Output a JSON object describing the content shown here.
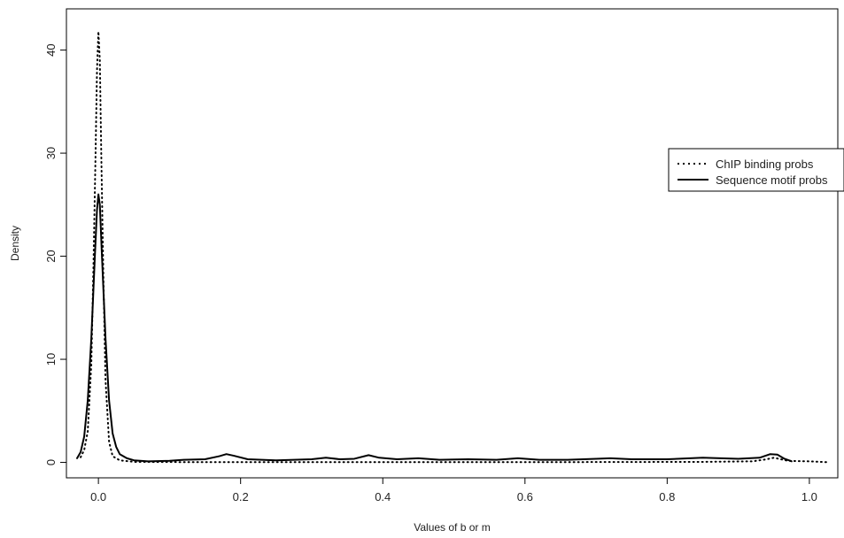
{
  "chart_data": {
    "type": "line",
    "title": "",
    "xlabel": "Values of b or m",
    "ylabel": "Density",
    "xlim": [
      -0.045,
      1.04
    ],
    "ylim": [
      -1.5,
      44
    ],
    "x_ticks": [
      0.0,
      0.2,
      0.4,
      0.6,
      0.8,
      1.0
    ],
    "x_tick_labels": [
      "0.0",
      "0.2",
      "0.4",
      "0.6",
      "0.8",
      "1.0"
    ],
    "y_ticks": [
      0,
      10,
      20,
      30,
      40
    ],
    "y_tick_labels": [
      "0",
      "10",
      "20",
      "30",
      "40"
    ],
    "grid": false,
    "legend_position": "right",
    "series": [
      {
        "name": "ChIP binding probs",
        "style": "dotted",
        "color": "#000000",
        "points": [
          [
            -0.025,
            0.5
          ],
          [
            -0.02,
            1.2
          ],
          [
            -0.015,
            3.0
          ],
          [
            -0.01,
            9.5
          ],
          [
            -0.007,
            19.0
          ],
          [
            -0.004,
            30.0
          ],
          [
            -0.002,
            38.0
          ],
          [
            0.0,
            41.8
          ],
          [
            0.002,
            39.0
          ],
          [
            0.004,
            30.0
          ],
          [
            0.007,
            18.0
          ],
          [
            0.01,
            8.0
          ],
          [
            0.015,
            2.0
          ],
          [
            0.02,
            0.6
          ],
          [
            0.03,
            0.2
          ],
          [
            0.05,
            0.05
          ],
          [
            0.1,
            0.03
          ],
          [
            0.3,
            0.02
          ],
          [
            0.5,
            0.02
          ],
          [
            0.7,
            0.03
          ],
          [
            0.85,
            0.05
          ],
          [
            0.92,
            0.1
          ],
          [
            0.94,
            0.3
          ],
          [
            0.95,
            0.45
          ],
          [
            0.96,
            0.3
          ],
          [
            0.97,
            0.15
          ],
          [
            1.0,
            0.1
          ],
          [
            1.025,
            0.02
          ]
        ]
      },
      {
        "name": "Sequence motif probs",
        "style": "solid",
        "color": "#000000",
        "points": [
          [
            -0.03,
            0.4
          ],
          [
            -0.025,
            1.0
          ],
          [
            -0.02,
            2.5
          ],
          [
            -0.015,
            6.0
          ],
          [
            -0.01,
            12.0
          ],
          [
            -0.005,
            20.0
          ],
          [
            -0.002,
            24.5
          ],
          [
            0.0,
            26.0
          ],
          [
            0.002,
            25.0
          ],
          [
            0.005,
            20.0
          ],
          [
            0.01,
            12.0
          ],
          [
            0.015,
            6.0
          ],
          [
            0.02,
            2.8
          ],
          [
            0.025,
            1.5
          ],
          [
            0.03,
            0.8
          ],
          [
            0.04,
            0.4
          ],
          [
            0.05,
            0.2
          ],
          [
            0.07,
            0.1
          ],
          [
            0.1,
            0.15
          ],
          [
            0.12,
            0.25
          ],
          [
            0.15,
            0.3
          ],
          [
            0.17,
            0.6
          ],
          [
            0.18,
            0.8
          ],
          [
            0.19,
            0.65
          ],
          [
            0.21,
            0.3
          ],
          [
            0.25,
            0.2
          ],
          [
            0.3,
            0.3
          ],
          [
            0.32,
            0.45
          ],
          [
            0.34,
            0.3
          ],
          [
            0.36,
            0.35
          ],
          [
            0.38,
            0.7
          ],
          [
            0.395,
            0.45
          ],
          [
            0.42,
            0.3
          ],
          [
            0.45,
            0.4
          ],
          [
            0.48,
            0.25
          ],
          [
            0.52,
            0.3
          ],
          [
            0.56,
            0.25
          ],
          [
            0.59,
            0.4
          ],
          [
            0.62,
            0.25
          ],
          [
            0.66,
            0.25
          ],
          [
            0.7,
            0.35
          ],
          [
            0.72,
            0.4
          ],
          [
            0.75,
            0.3
          ],
          [
            0.8,
            0.3
          ],
          [
            0.85,
            0.45
          ],
          [
            0.9,
            0.35
          ],
          [
            0.93,
            0.45
          ],
          [
            0.945,
            0.8
          ],
          [
            0.955,
            0.75
          ],
          [
            0.965,
            0.35
          ],
          [
            0.975,
            0.1
          ]
        ]
      }
    ]
  }
}
